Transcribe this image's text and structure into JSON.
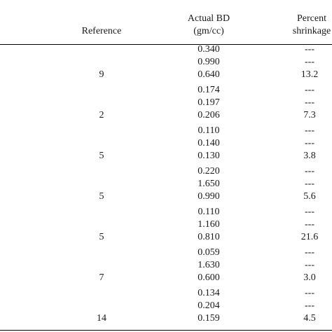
{
  "table": {
    "headers": {
      "reference": "Reference",
      "bd_line1": "Actual BD",
      "bd_line2": "(gm/cc)",
      "shrink_line1": "Percent",
      "shrink_line2": "shrinkage"
    },
    "groups": [
      {
        "reference": "9",
        "rows": [
          {
            "bd": "0.340",
            "shrinkage": "---"
          },
          {
            "bd": "0.990",
            "shrinkage": "---"
          },
          {
            "bd": "0.640",
            "shrinkage": "13.2"
          }
        ]
      },
      {
        "reference": "2",
        "rows": [
          {
            "bd": "0.174",
            "shrinkage": "---"
          },
          {
            "bd": "0.197",
            "shrinkage": "---"
          },
          {
            "bd": "0.206",
            "shrinkage": "7.3"
          }
        ]
      },
      {
        "reference": "5",
        "rows": [
          {
            "bd": "0.110",
            "shrinkage": "---"
          },
          {
            "bd": "0.140",
            "shrinkage": "---"
          },
          {
            "bd": "0.130",
            "shrinkage": "3.8"
          }
        ]
      },
      {
        "reference": "5",
        "rows": [
          {
            "bd": "0.220",
            "shrinkage": "---"
          },
          {
            "bd": "1.650",
            "shrinkage": "---"
          },
          {
            "bd": "0.990",
            "shrinkage": "5.6"
          }
        ]
      },
      {
        "reference": "5",
        "rows": [
          {
            "bd": "0.110",
            "shrinkage": "---"
          },
          {
            "bd": "1.160",
            "shrinkage": "---"
          },
          {
            "bd": "0.810",
            "shrinkage": "21.6"
          }
        ]
      },
      {
        "reference": "7",
        "rows": [
          {
            "bd": "0.059",
            "shrinkage": "---"
          },
          {
            "bd": "1.630",
            "shrinkage": "---"
          },
          {
            "bd": "0.600",
            "shrinkage": "3.0"
          }
        ]
      },
      {
        "reference": "14",
        "rows": [
          {
            "bd": "0.134",
            "shrinkage": "---"
          },
          {
            "bd": "0.204",
            "shrinkage": "---"
          },
          {
            "bd": "0.159",
            "shrinkage": "4.5"
          }
        ]
      }
    ]
  }
}
